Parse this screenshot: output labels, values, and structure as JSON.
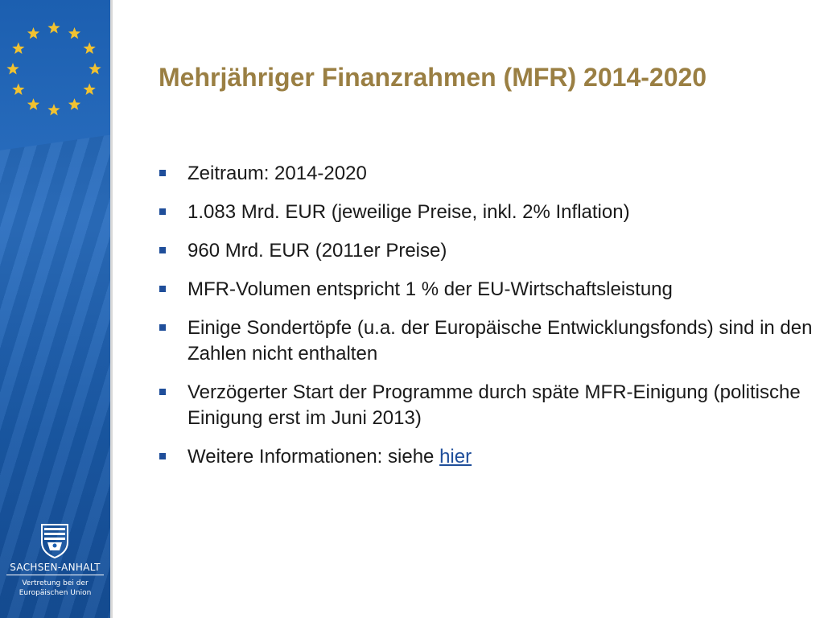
{
  "slide": {
    "title": "Mehrjähriger Finanzrahmen (MFR) 2014-2020",
    "bullets": [
      {
        "text": "Zeitraum: 2014-2020"
      },
      {
        "text": "1.083 Mrd. EUR (jeweilige Preise, inkl. 2% Inflation)"
      },
      {
        "text": "960 Mrd. EUR (2011er Preise)"
      },
      {
        "text": "MFR-Volumen entspricht 1 % der EU-Wirtschaftsleistung"
      },
      {
        "text": "Einige Sondertöpfe (u.a. der Europäische Entwicklungsfonds) sind in den Zahlen nicht enthalten"
      },
      {
        "text": "Verzögerter Start der Programme durch späte MFR-Einigung (politische Einigung erst im Juni 2013)"
      },
      {
        "text": "Weitere Informationen: siehe ",
        "link": "hier"
      }
    ]
  },
  "sidebar": {
    "flag_icon": "eu-stars-icon",
    "logo_icon": "coat-of-arms-icon",
    "state_name": "SACHSEN-ANHALT",
    "rep_line1": "Vertretung bei der",
    "rep_line2": "Europäischen Union"
  },
  "colors": {
    "band": "#1c5fb0",
    "title": "#9a7f43",
    "bullet": "#1f4e9a",
    "star": "#f2c230"
  }
}
